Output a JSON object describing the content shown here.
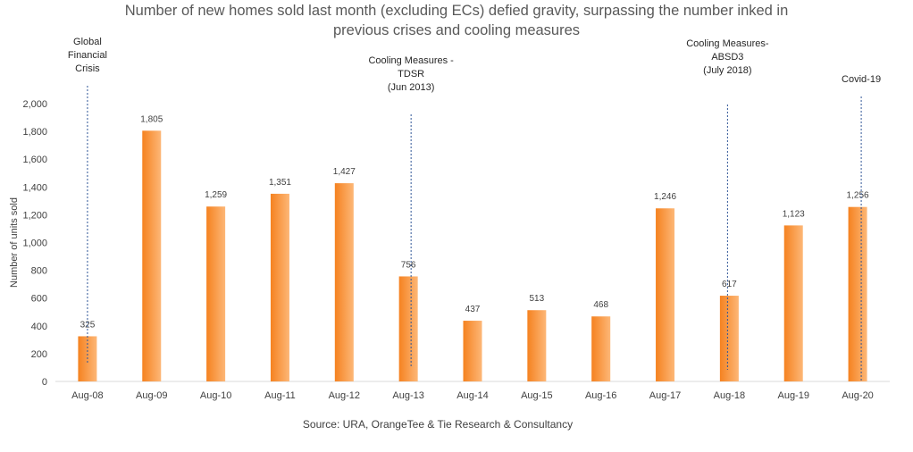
{
  "chart_data": {
    "type": "bar",
    "title": "Number of new homes sold last month (excluding ECs) defied gravity, surpassing the number inked in previous crises and cooling measures",
    "title_lines": [
      "Number of new homes sold last month (excluding ECs) defied gravity, surpassing the number inked in",
      "previous crises and cooling measures"
    ],
    "ylabel": "Number of units sold",
    "xlabel": "",
    "categories": [
      "Aug-08",
      "Aug-09",
      "Aug-10",
      "Aug-11",
      "Aug-12",
      "Aug-13",
      "Aug-14",
      "Aug-15",
      "Aug-16",
      "Aug-17",
      "Aug-18",
      "Aug-19",
      "Aug-20"
    ],
    "values": [
      325,
      1805,
      1259,
      1351,
      1427,
      756,
      437,
      513,
      468,
      1246,
      617,
      1123,
      1256
    ],
    "data_labels": [
      "325",
      "1,805",
      "1,259",
      "1,351",
      "1,427",
      "756",
      "437",
      "513",
      "468",
      "1,246",
      "617",
      "1,123",
      "1,256"
    ],
    "ylim": [
      0,
      2000
    ],
    "yticks": [
      0,
      200,
      400,
      600,
      800,
      1000,
      1200,
      1400,
      1600,
      1800,
      2000
    ],
    "ytick_labels": [
      "0",
      "200",
      "400",
      "600",
      "800",
      "1,000",
      "1,200",
      "1,400",
      "1,600",
      "1,800",
      "2,000"
    ],
    "grid": false,
    "legend": "none",
    "bar_gradient": [
      "#f58220",
      "#fdb777"
    ],
    "annotations": [
      {
        "category": "Aug-08",
        "lines": [
          "Global",
          "Financial",
          "Crisis"
        ]
      },
      {
        "category": "Aug-13",
        "lines": [
          "Cooling Measures -",
          "TDSR",
          "(Jun 2013)"
        ]
      },
      {
        "category": "Aug-18",
        "lines": [
          "Cooling Measures-",
          "ABSD3",
          "(July 2018)"
        ]
      },
      {
        "category": "Aug-20",
        "lines": [
          "Covid-19"
        ]
      }
    ],
    "source": "Source: URA, OrangeTee & Tie Research & Consultancy"
  },
  "colors": {
    "title": "#595959",
    "text": "#404040",
    "axis": "#d9d9d9",
    "marker_line": "#2f5597"
  }
}
